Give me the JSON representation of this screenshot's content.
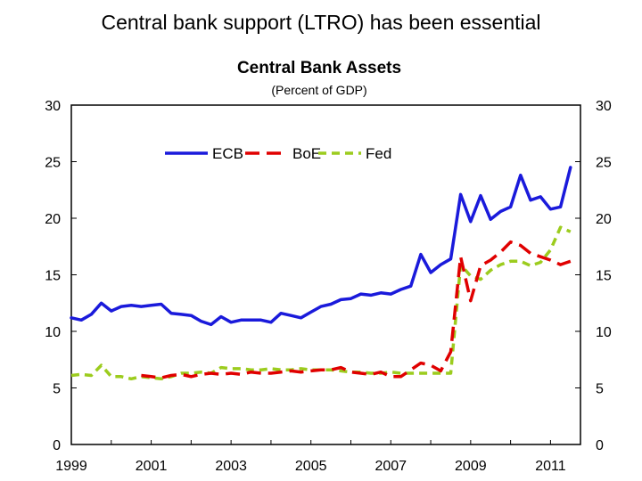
{
  "slide": {
    "title": "Central bank support (LTRO) has been essential"
  },
  "chart_data": {
    "type": "line",
    "title": "Central Bank Assets",
    "subtitle": "(Percent of GDP)",
    "xlabel": "",
    "ylabel": "",
    "xlim": [
      1999.0,
      2011.75
    ],
    "ylim": [
      0,
      30
    ],
    "x_ticks": [
      1999,
      2001,
      2003,
      2005,
      2007,
      2009,
      2011
    ],
    "x_tick_labels": [
      "1999",
      "2001",
      "2003",
      "2005",
      "2007",
      "2009",
      "2011"
    ],
    "y_ticks": [
      0,
      5,
      10,
      15,
      20,
      25,
      30
    ],
    "y_tick_labels": [
      "0",
      "5",
      "10",
      "15",
      "20",
      "25",
      "30"
    ],
    "grid": false,
    "legend": {
      "position": "top-center",
      "orientation": "horizontal"
    },
    "series": [
      {
        "name": "ECB",
        "color": "#1a1adb",
        "style": "solid",
        "x": [
          1999.0,
          1999.25,
          1999.5,
          1999.75,
          2000.0,
          2000.25,
          2000.5,
          2000.75,
          2001.0,
          2001.25,
          2001.5,
          2001.75,
          2002.0,
          2002.25,
          2002.5,
          2002.75,
          2003.0,
          2003.25,
          2003.5,
          2003.75,
          2004.0,
          2004.25,
          2004.5,
          2004.75,
          2005.0,
          2005.25,
          2005.5,
          2005.75,
          2006.0,
          2006.25,
          2006.5,
          2006.75,
          2007.0,
          2007.25,
          2007.5,
          2007.75,
          2008.0,
          2008.25,
          2008.5,
          2008.75,
          2009.0,
          2009.25,
          2009.5,
          2009.75,
          2010.0,
          2010.25,
          2010.5,
          2010.75,
          2011.0,
          2011.25,
          2011.5
        ],
        "values": [
          11.2,
          11.0,
          11.5,
          12.5,
          11.8,
          12.2,
          12.3,
          12.2,
          12.3,
          12.4,
          11.6,
          11.5,
          11.4,
          10.9,
          10.6,
          11.3,
          10.8,
          11.0,
          11.0,
          11.0,
          10.8,
          11.6,
          11.4,
          11.2,
          11.7,
          12.2,
          12.4,
          12.8,
          12.9,
          13.3,
          13.2,
          13.4,
          13.3,
          13.7,
          14.0,
          16.8,
          15.2,
          15.9,
          16.4,
          22.1,
          19.7,
          22.0,
          19.9,
          20.6,
          21.0,
          23.8,
          21.6,
          21.9,
          20.8,
          21.0,
          24.5
        ]
      },
      {
        "name": "BoE",
        "color": "#e00000",
        "style": "dashed",
        "x": [
          2000.75,
          2001.0,
          2001.25,
          2001.5,
          2001.75,
          2002.0,
          2002.25,
          2002.5,
          2002.75,
          2003.0,
          2003.25,
          2003.5,
          2003.75,
          2004.0,
          2004.25,
          2004.5,
          2004.75,
          2005.0,
          2005.25,
          2005.5,
          2005.75,
          2006.0,
          2006.25,
          2006.5,
          2006.75,
          2007.0,
          2007.25,
          2007.5,
          2007.75,
          2008.0,
          2008.25,
          2008.5,
          2008.75,
          2009.0,
          2009.25,
          2009.5,
          2009.75,
          2010.0,
          2010.25,
          2010.5,
          2010.75,
          2011.0,
          2011.25,
          2011.5
        ],
        "values": [
          6.1,
          6.0,
          5.9,
          6.1,
          6.2,
          6.0,
          6.2,
          6.3,
          6.2,
          6.3,
          6.2,
          6.4,
          6.3,
          6.3,
          6.4,
          6.5,
          6.4,
          6.5,
          6.6,
          6.6,
          6.8,
          6.4,
          6.3,
          6.2,
          6.4,
          6.0,
          6.0,
          6.6,
          7.2,
          7.0,
          6.5,
          8.2,
          16.6,
          12.7,
          15.8,
          16.3,
          17.0,
          17.9,
          17.6,
          16.9,
          16.6,
          16.3,
          15.9,
          16.2
        ]
      },
      {
        "name": "Fed",
        "color": "#9ccc1e",
        "style": "dashed",
        "x": [
          1999.0,
          1999.25,
          1999.5,
          1999.75,
          2000.0,
          2000.25,
          2000.5,
          2000.75,
          2001.0,
          2001.25,
          2001.5,
          2001.75,
          2002.0,
          2002.25,
          2002.5,
          2002.75,
          2003.0,
          2003.25,
          2003.5,
          2003.75,
          2004.0,
          2004.25,
          2004.5,
          2004.75,
          2005.0,
          2005.25,
          2005.5,
          2005.75,
          2006.0,
          2006.25,
          2006.5,
          2006.75,
          2007.0,
          2007.25,
          2007.5,
          2007.75,
          2008.0,
          2008.25,
          2008.5,
          2008.75,
          2009.0,
          2009.25,
          2009.5,
          2009.75,
          2010.0,
          2010.25,
          2010.5,
          2010.75,
          2011.0,
          2011.25,
          2011.5
        ],
        "values": [
          6.1,
          6.2,
          6.1,
          7.0,
          6.0,
          6.0,
          5.8,
          6.0,
          5.9,
          5.8,
          6.0,
          6.3,
          6.3,
          6.4,
          6.3,
          6.8,
          6.7,
          6.7,
          6.6,
          6.6,
          6.7,
          6.6,
          6.6,
          6.7,
          6.6,
          6.6,
          6.6,
          6.5,
          6.4,
          6.4,
          6.3,
          6.3,
          6.4,
          6.3,
          6.3,
          6.3,
          6.3,
          6.3,
          6.3,
          15.9,
          14.9,
          14.6,
          15.4,
          15.9,
          16.2,
          16.2,
          15.8,
          16.1,
          17.2,
          19.2,
          18.8
        ]
      }
    ]
  }
}
